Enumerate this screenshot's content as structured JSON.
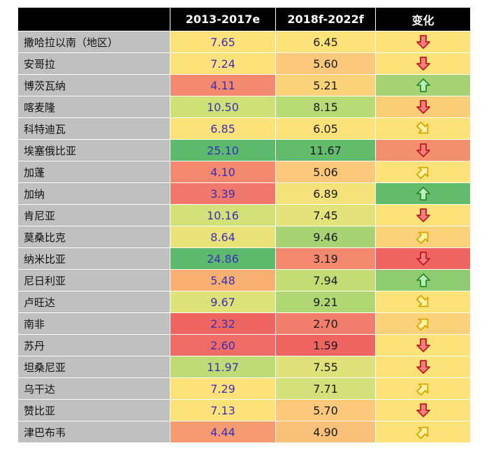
{
  "chart_data": {
    "type": "table",
    "headers": [
      "",
      "2013-2017e",
      "2018f-2022f",
      "变化"
    ],
    "rows": [
      {
        "country": "撒哈拉以南（地区）",
        "a": "7.65",
        "b": "6.45",
        "change": "down",
        "ca": "#fde27a",
        "cb": "#fde27a",
        "cc": "#fde27a"
      },
      {
        "country": "安哥拉",
        "a": "7.24",
        "b": "5.60",
        "change": "down",
        "ca": "#fde27a",
        "cb": "#fbc77a",
        "cc": "#fde27a"
      },
      {
        "country": "博茨瓦纳",
        "a": "4.11",
        "b": "5.21",
        "change": "up",
        "ca": "#f2886e",
        "cb": "#fbd27a",
        "cc": "#a8d374"
      },
      {
        "country": "喀麦隆",
        "a": "10.50",
        "b": "8.15",
        "change": "down",
        "ca": "#cfe077",
        "cb": "#b8db76",
        "cc": "#f9ce76"
      },
      {
        "country": "科特迪瓦",
        "a": "6.85",
        "b": "6.05",
        "change": "down-right",
        "ca": "#fde27a",
        "cb": "#fde27a",
        "cc": "#fde27a"
      },
      {
        "country": "埃塞俄比亚",
        "a": "25.10",
        "b": "11.67",
        "change": "down",
        "ca": "#5db96c",
        "cb": "#63bb6c",
        "cc": "#f2906e"
      },
      {
        "country": "加蓬",
        "a": "4.10",
        "b": "5.06",
        "change": "up-right",
        "ca": "#f2886e",
        "cb": "#fbc77a",
        "cc": "#fde27a"
      },
      {
        "country": "加纳",
        "a": "3.39",
        "b": "6.89",
        "change": "up",
        "ca": "#f1786c",
        "cb": "#f3e27a",
        "cc": "#63bb6c"
      },
      {
        "country": "肯尼亚",
        "a": "10.16",
        "b": "7.45",
        "change": "down",
        "ca": "#d2e178",
        "cb": "#e4e27a",
        "cc": "#fde27a"
      },
      {
        "country": "莫桑比克",
        "a": "8.64",
        "b": "9.46",
        "change": "up-right",
        "ca": "#eae37a",
        "cb": "#a8d374",
        "cc": "#fbd27a"
      },
      {
        "country": "纳米比亚",
        "a": "24.86",
        "b": "3.19",
        "change": "down",
        "ca": "#5db96c",
        "cb": "#f2886e",
        "cc": "#ee6562"
      },
      {
        "country": "尼日利亚",
        "a": "5.48",
        "b": "7.94",
        "change": "up",
        "ca": "#f7b072",
        "cb": "#c3dc76",
        "cc": "#8fcc71"
      },
      {
        "country": "卢旺达",
        "a": "9.67",
        "b": "9.21",
        "change": "down-right",
        "ca": "#dde279",
        "cb": "#b1d775",
        "cc": "#fde27a"
      },
      {
        "country": "南非",
        "a": "2.32",
        "b": "2.70",
        "change": "up-right",
        "ca": "#ee6562",
        "cb": "#f17d6c",
        "cc": "#fbd27a"
      },
      {
        "country": "苏丹",
        "a": "2.60",
        "b": "1.59",
        "change": "down",
        "ca": "#ef6b66",
        "cb": "#ee6562",
        "cc": "#fde27a"
      },
      {
        "country": "坦桑尼亚",
        "a": "11.97",
        "b": "7.55",
        "change": "down",
        "ca": "#bfdb76",
        "cb": "#dfe17a",
        "cc": "#fde27a"
      },
      {
        "country": "乌干达",
        "a": "7.29",
        "b": "7.71",
        "change": "up-right",
        "ca": "#fde27a",
        "cb": "#d4e079",
        "cc": "#fde27a"
      },
      {
        "country": "赞比亚",
        "a": "7.13",
        "b": "5.70",
        "change": "down",
        "ca": "#fde27a",
        "cb": "#fbc77a",
        "cc": "#fde27a"
      },
      {
        "country": "津巴布韦",
        "a": "4.44",
        "b": "4.90",
        "change": "up-right",
        "ca": "#f59a70",
        "cb": "#f9c07a",
        "cc": "#fde27a"
      }
    ]
  }
}
